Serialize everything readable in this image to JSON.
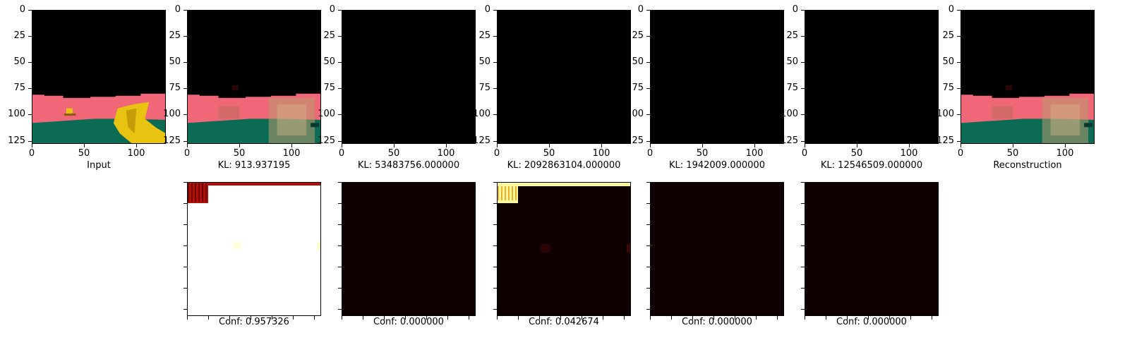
{
  "chart_data": {
    "type": "image_grid",
    "rows": 2,
    "top_row": [
      {
        "caption": "Input",
        "kind": "scene",
        "variant": "input",
        "axes": true
      },
      {
        "caption": "KL: 913.937195",
        "kind": "scene",
        "variant": "recon",
        "axes": true
      },
      {
        "caption": "KL: 53483756.000000",
        "kind": "black",
        "axes": true
      },
      {
        "caption": "KL: 2092863104.000000",
        "kind": "black",
        "axes": true
      },
      {
        "caption": "KL: 1942009.000000",
        "kind": "black",
        "axes": true
      },
      {
        "caption": "KL: 12546509.000000",
        "kind": "black",
        "axes": true
      },
      {
        "caption": "Reconstruction",
        "kind": "scene",
        "variant": "recon",
        "axes": true
      }
    ],
    "bottom_row": [
      {
        "caption": "Conf: 0.957326",
        "kind": "heat_white",
        "conf": 0.957326
      },
      {
        "caption": "Conf: 0.000000",
        "kind": "heat_dark",
        "conf": 0.0
      },
      {
        "caption": "Conf: 0.042674",
        "kind": "heat_top",
        "conf": 0.042674
      },
      {
        "caption": "Conf: 0.000000",
        "kind": "heat_dark",
        "conf": 0.0
      },
      {
        "caption": "Conf: 0.000000",
        "kind": "heat_dark",
        "conf": 0.0
      }
    ],
    "yticks": [
      "0",
      "25",
      "50",
      "75",
      "100",
      "125"
    ],
    "xticks": [
      "0",
      "50",
      "100"
    ],
    "image_size": 128,
    "colors": {
      "sky": "#000000",
      "wall": "#f06878",
      "floor": "#0b6b55",
      "object": "#e8c411",
      "heat_dark": "#0f0101",
      "heat_white": "#ffffff",
      "heat_yellow": "#fdf7a0",
      "heat_red": "#b01005"
    }
  }
}
